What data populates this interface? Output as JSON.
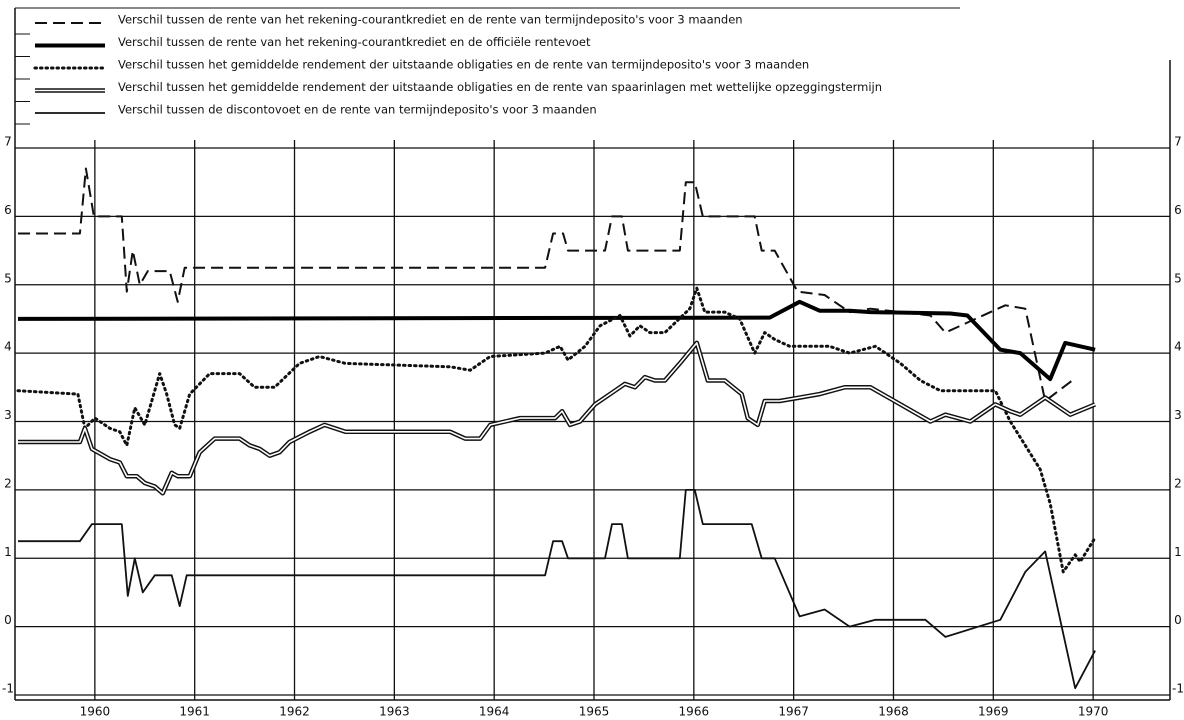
{
  "chart_data": {
    "type": "line",
    "series": [
      {
        "name": "Verschil tussen de rente van het rekening-courantkrediet en de rente van termijndeposito's voor 3 maanden",
        "color": "#111111",
        "line_style": "dashed",
        "x": [
          1959.23,
          1959.85,
          1959.91,
          1959.99,
          1960.27,
          1960.32,
          1960.38,
          1960.45,
          1960.53,
          1960.75,
          1960.83,
          1960.9,
          1964.51,
          1964.59,
          1964.69,
          1964.74,
          1965.11,
          1965.18,
          1965.28,
          1965.34,
          1965.86,
          1965.92,
          1966.01,
          1966.09,
          1966.61,
          1966.68,
          1966.81,
          1967.04,
          1967.31,
          1967.56,
          1967.77,
          1968.37,
          1968.52,
          1969.12,
          1969.32,
          1969.52,
          1969.79
        ],
        "values": [
          5.75,
          5.75,
          6.7,
          6.0,
          6.0,
          4.9,
          5.5,
          5.0,
          5.2,
          5.2,
          4.75,
          5.25,
          5.25,
          5.75,
          5.75,
          5.5,
          5.5,
          6.0,
          6.0,
          5.5,
          5.5,
          6.5,
          6.5,
          6.0,
          6.0,
          5.5,
          5.5,
          4.9,
          4.85,
          4.6,
          4.65,
          4.55,
          4.3,
          4.7,
          4.65,
          3.3,
          3.6
        ]
      },
      {
        "name": "Verschil tussen de rente van het rekening-courantkrediet en de officiële rentevoet",
        "color": "#000000",
        "line_style": "thick",
        "x": [
          1959.23,
          1966.76,
          1967.06,
          1967.26,
          1967.56,
          1967.77,
          1968.57,
          1968.74,
          1969.07,
          1969.27,
          1969.57,
          1969.72,
          1970.02
        ],
        "values": [
          4.5,
          4.52,
          4.75,
          4.62,
          4.62,
          4.6,
          4.58,
          4.55,
          4.05,
          4.0,
          3.62,
          4.15,
          4.05
        ]
      },
      {
        "name": "Verschil tussen het gemiddelde rendement der uitstaande obligaties en de rente van termijndeposito's voor 3 maanden",
        "color": "#111111",
        "line_style": "dotted",
        "x": [
          1959.23,
          1959.83,
          1959.9,
          1960.0,
          1960.15,
          1960.25,
          1960.32,
          1960.4,
          1960.5,
          1960.65,
          1960.72,
          1960.8,
          1960.85,
          1960.95,
          1961.15,
          1961.45,
          1961.6,
          1961.8,
          1962.05,
          1962.25,
          1962.51,
          1963.56,
          1963.76,
          1963.96,
          1964.51,
          1964.66,
          1964.74,
          1964.91,
          1965.06,
          1965.26,
          1965.36,
          1965.46,
          1965.56,
          1965.71,
          1965.96,
          1966.03,
          1966.11,
          1966.31,
          1966.46,
          1966.61,
          1966.71,
          1966.81,
          1966.96,
          1967.21,
          1967.36,
          1967.56,
          1967.82,
          1968.07,
          1968.27,
          1968.47,
          1969.02,
          1969.17,
          1969.32,
          1969.47,
          1969.57,
          1969.7,
          1969.82,
          1969.87,
          1970.02
        ],
        "values": [
          3.45,
          3.4,
          2.9,
          3.05,
          2.9,
          2.85,
          2.65,
          3.2,
          2.95,
          3.7,
          3.4,
          2.95,
          2.9,
          3.4,
          3.7,
          3.7,
          3.5,
          3.5,
          3.85,
          3.95,
          3.85,
          3.8,
          3.75,
          3.95,
          4.0,
          4.1,
          3.9,
          4.1,
          4.4,
          4.55,
          4.25,
          4.4,
          4.3,
          4.3,
          4.65,
          4.95,
          4.6,
          4.6,
          4.5,
          4.0,
          4.3,
          4.2,
          4.1,
          4.1,
          4.1,
          4.0,
          4.1,
          3.85,
          3.6,
          3.45,
          3.45,
          3.0,
          2.65,
          2.3,
          1.8,
          0.8,
          1.05,
          0.95,
          1.3
        ]
      },
      {
        "name": "Verschil tussen het gemiddelde rendement der uitstaande obligaties en de rente van spaarinlagen met wettelijke opzeggingstermijn",
        "color": "#111111",
        "line_style": "double",
        "x": [
          1959.23,
          1959.85,
          1959.9,
          1959.97,
          1960.15,
          1960.25,
          1960.32,
          1960.42,
          1960.5,
          1960.6,
          1960.68,
          1960.77,
          1960.83,
          1960.95,
          1961.05,
          1961.2,
          1961.45,
          1961.55,
          1961.65,
          1961.75,
          1961.85,
          1961.95,
          1962.15,
          1962.3,
          1962.51,
          1963.56,
          1963.71,
          1963.86,
          1963.96,
          1964.26,
          1964.61,
          1964.68,
          1964.76,
          1964.86,
          1965.01,
          1965.21,
          1965.31,
          1965.41,
          1965.51,
          1965.61,
          1965.71,
          1965.86,
          1966.03,
          1966.14,
          1966.31,
          1966.48,
          1966.54,
          1966.64,
          1966.71,
          1966.86,
          1967.06,
          1967.26,
          1967.51,
          1967.77,
          1968.07,
          1968.37,
          1968.52,
          1968.77,
          1969.02,
          1969.17,
          1969.27,
          1969.52,
          1969.77,
          1970.02
        ],
        "values": [
          2.7,
          2.7,
          2.9,
          2.6,
          2.45,
          2.4,
          2.2,
          2.2,
          2.1,
          2.05,
          1.95,
          2.25,
          2.2,
          2.2,
          2.55,
          2.75,
          2.75,
          2.65,
          2.6,
          2.5,
          2.55,
          2.7,
          2.85,
          2.95,
          2.85,
          2.85,
          2.75,
          2.75,
          2.95,
          3.05,
          3.05,
          3.15,
          2.95,
          3.0,
          3.25,
          3.45,
          3.55,
          3.5,
          3.65,
          3.6,
          3.6,
          3.85,
          4.15,
          3.6,
          3.6,
          3.4,
          3.05,
          2.95,
          3.3,
          3.3,
          3.35,
          3.4,
          3.5,
          3.5,
          3.25,
          3.0,
          3.1,
          3.0,
          3.25,
          3.15,
          3.1,
          3.35,
          3.1,
          3.25
        ]
      },
      {
        "name": "Verschil tussen de discontovoet en de rente van termijndeposito's voor 3 maanden",
        "color": "#111111",
        "line_style": "solid",
        "x": [
          1959.23,
          1959.85,
          1959.97,
          1960.27,
          1960.33,
          1960.4,
          1960.48,
          1960.6,
          1960.77,
          1960.85,
          1960.92,
          1964.51,
          1964.59,
          1964.68,
          1964.74,
          1965.11,
          1965.18,
          1965.28,
          1965.34,
          1965.86,
          1965.92,
          1966.01,
          1966.09,
          1966.58,
          1966.68,
          1966.81,
          1967.06,
          1967.31,
          1967.56,
          1967.82,
          1968.32,
          1968.52,
          1969.07,
          1969.32,
          1969.52,
          1969.82,
          1970.02
        ],
        "values": [
          1.25,
          1.25,
          1.5,
          1.5,
          0.45,
          1.0,
          0.5,
          0.75,
          0.75,
          0.3,
          0.75,
          0.75,
          1.25,
          1.25,
          1.0,
          1.0,
          1.5,
          1.5,
          1.0,
          1.0,
          2.0,
          2.0,
          1.5,
          1.5,
          1.0,
          1.0,
          0.15,
          0.25,
          0.0,
          0.1,
          0.1,
          -0.15,
          0.1,
          0.8,
          1.1,
          -0.9,
          -0.35
        ]
      }
    ],
    "xlim": [
      1959.2,
      1970.77
    ],
    "xticks": [
      1960,
      1961,
      1962,
      1963,
      1964,
      1965,
      1966,
      1967,
      1968,
      1969,
      1970
    ],
    "ylim": [
      -1,
      7
    ],
    "yticks": [
      -1,
      0,
      1,
      2,
      3,
      4,
      5,
      6,
      7
    ],
    "grid": true,
    "legend": "top"
  }
}
